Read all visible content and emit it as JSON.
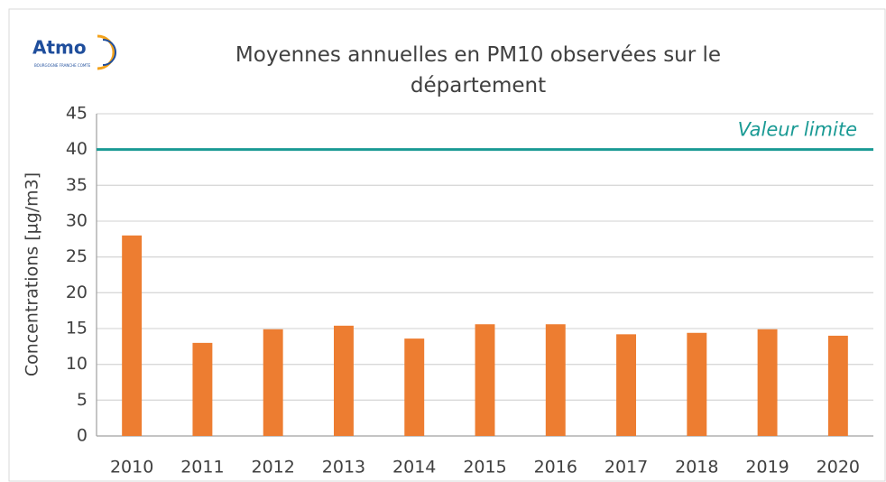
{
  "logo": {
    "name": "Atmo",
    "subtitle": "BOURGOGNE FRANCHE COMTE"
  },
  "chart_data": {
    "type": "bar",
    "title": "Moyennes annuelles en PM10 observées sur le département",
    "ylabel": "Concentrations [µg/m3]",
    "categories": [
      "2010",
      "2011",
      "2012",
      "2013",
      "2014",
      "2015",
      "2016",
      "2017",
      "2018",
      "2019",
      "2020"
    ],
    "values": [
      28,
      13,
      14.9,
      15.4,
      13.6,
      15.6,
      15.6,
      14.2,
      14.4,
      14.9,
      14.0
    ],
    "color": "#ed7d31",
    "ylim": [
      0,
      45
    ],
    "yticks": [
      0,
      5,
      10,
      15,
      20,
      25,
      30,
      35,
      40,
      45
    ],
    "grid": true,
    "reference_line": {
      "value": 40,
      "label": "Valeur limite",
      "color": "#1a9a94"
    }
  }
}
